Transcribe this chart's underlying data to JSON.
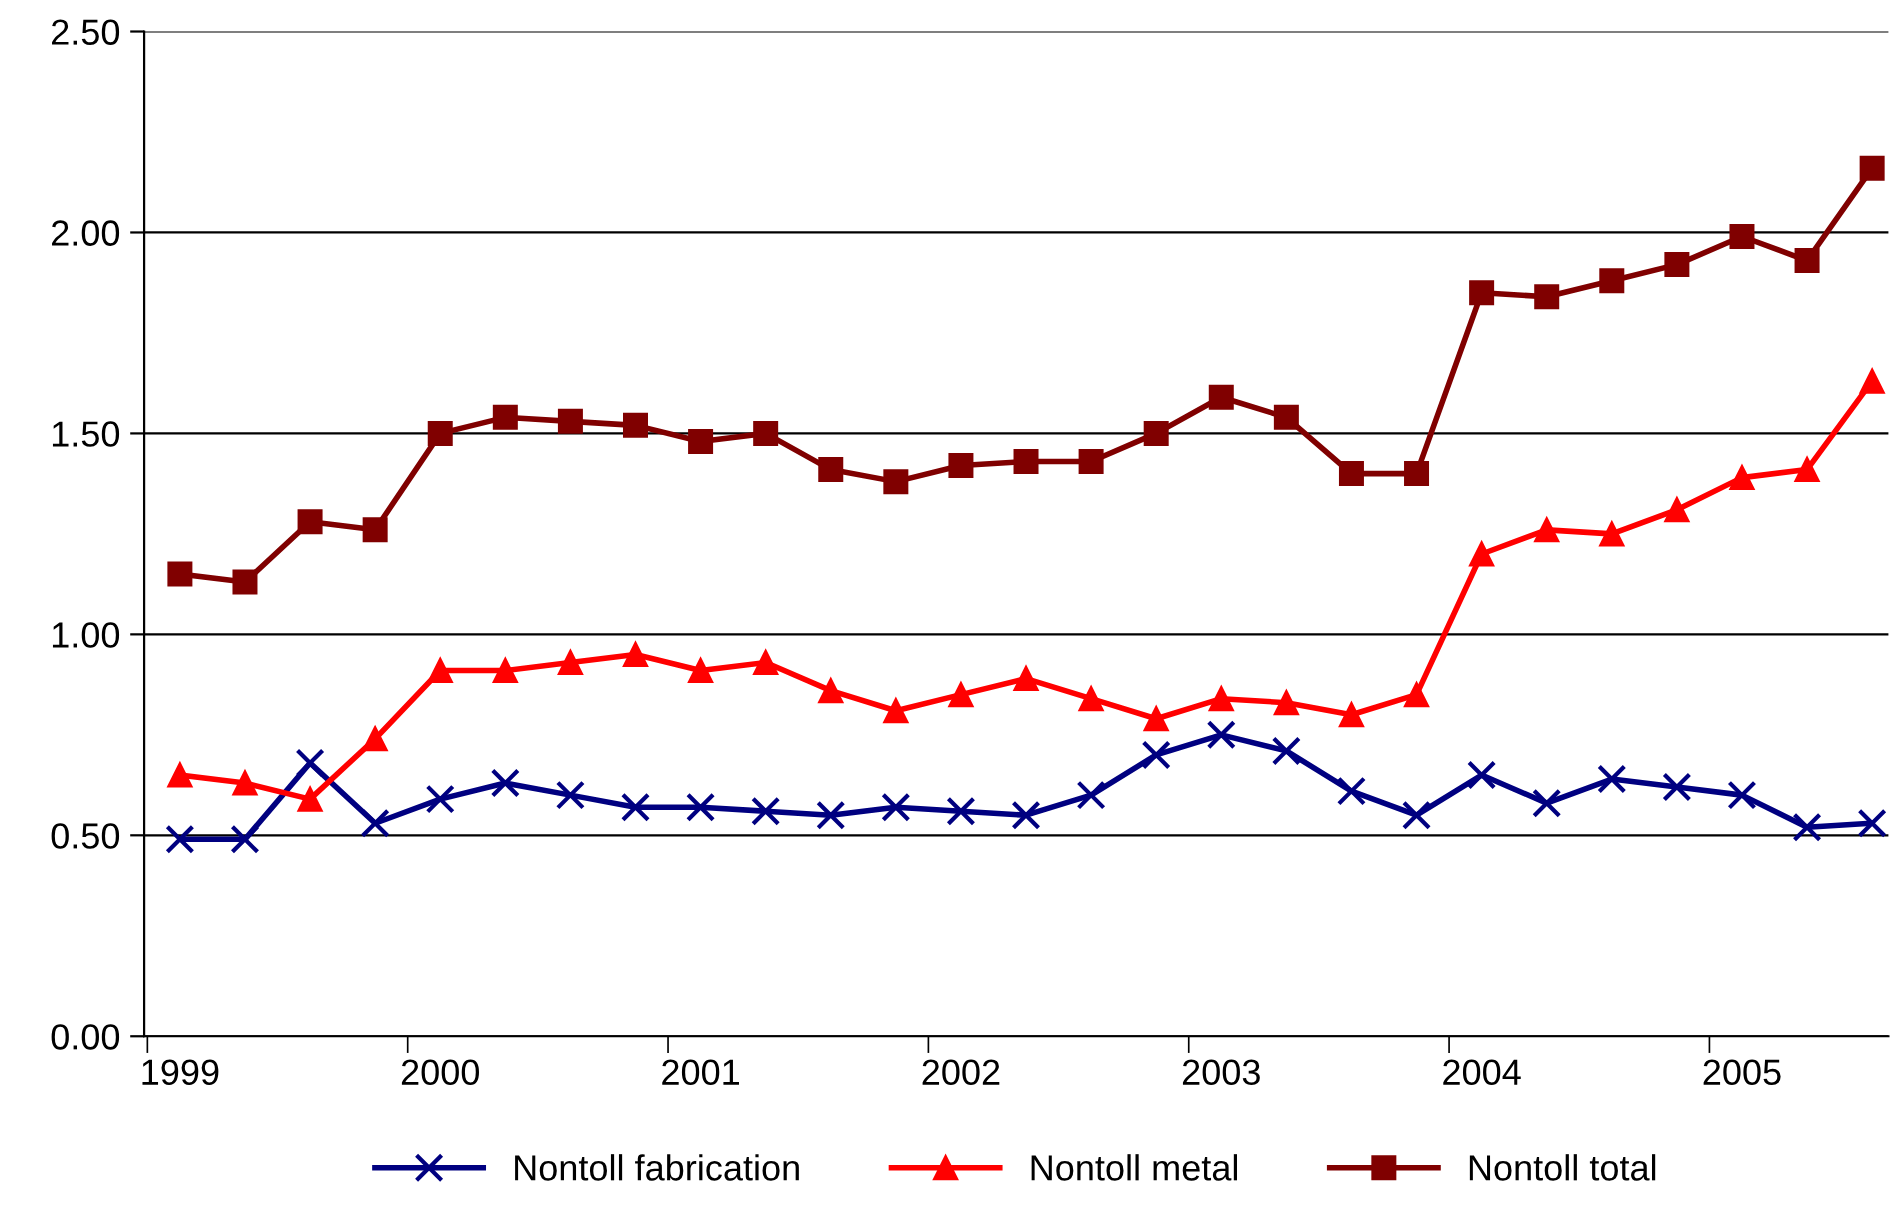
{
  "chart_data": {
    "type": "line",
    "categories": [
      "1999",
      null,
      null,
      null,
      "2000",
      null,
      null,
      null,
      "2001",
      null,
      null,
      null,
      "2002",
      null,
      null,
      null,
      "2003",
      null,
      null,
      null,
      "2004",
      null,
      null,
      null,
      "2005",
      null,
      null
    ],
    "ylim": [
      0,
      2.5
    ],
    "yticks": [
      {
        "value": 0,
        "label": "0.00"
      },
      {
        "value": 0.5,
        "label": "0.50"
      },
      {
        "value": 1,
        "label": "1.00"
      },
      {
        "value": 1.5,
        "label": "1.50"
      },
      {
        "value": 2,
        "label": "2.00"
      },
      {
        "value": 2.5,
        "label": "2.50"
      }
    ],
    "grid": "y",
    "legend": "bottom",
    "series": [
      {
        "name": "Nontoll fabrication",
        "color": "#000080",
        "marker": "cross",
        "values": [
          0.49,
          0.49,
          0.68,
          0.53,
          0.59,
          0.63,
          0.6,
          0.57,
          0.57,
          0.56,
          0.55,
          0.57,
          0.56,
          0.55,
          0.6,
          0.7,
          0.75,
          0.71,
          0.61,
          0.55,
          0.65,
          0.58,
          0.64,
          0.62,
          0.6,
          0.52,
          0.53
        ]
      },
      {
        "name": "Nontoll metal",
        "color": "#ff0000",
        "marker": "triangle",
        "values": [
          0.65,
          0.63,
          0.59,
          0.74,
          0.91,
          0.91,
          0.93,
          0.95,
          0.91,
          0.93,
          0.86,
          0.81,
          0.85,
          0.89,
          0.84,
          0.79,
          0.84,
          0.83,
          0.8,
          0.85,
          1.2,
          1.26,
          1.25,
          1.31,
          1.39,
          1.41,
          1.63
        ]
      },
      {
        "name": "Nontoll total",
        "color": "#800000",
        "marker": "square",
        "values": [
          1.15,
          1.13,
          1.28,
          1.26,
          1.5,
          1.54,
          1.53,
          1.52,
          1.48,
          1.5,
          1.41,
          1.38,
          1.42,
          1.43,
          1.43,
          1.5,
          1.59,
          1.54,
          1.4,
          1.4,
          1.85,
          1.84,
          1.88,
          1.92,
          1.99,
          1.93,
          2.16
        ]
      }
    ]
  }
}
